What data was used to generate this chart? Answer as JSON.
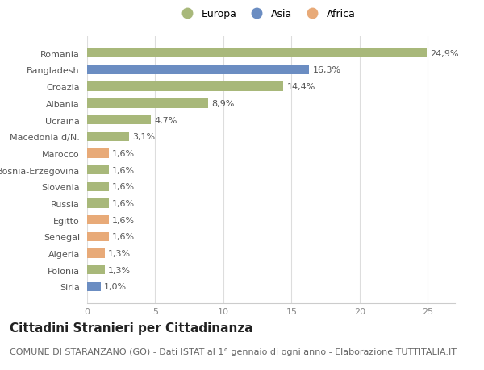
{
  "categories": [
    "Siria",
    "Polonia",
    "Algeria",
    "Senegal",
    "Egitto",
    "Russia",
    "Slovenia",
    "Bosnia-Erzegovina",
    "Marocco",
    "Macedonia d/N.",
    "Ucraina",
    "Albania",
    "Croazia",
    "Bangladesh",
    "Romania"
  ],
  "values": [
    1.0,
    1.3,
    1.3,
    1.6,
    1.6,
    1.6,
    1.6,
    1.6,
    1.6,
    3.1,
    4.7,
    8.9,
    14.4,
    16.3,
    24.9
  ],
  "labels": [
    "1,0%",
    "1,3%",
    "1,3%",
    "1,6%",
    "1,6%",
    "1,6%",
    "1,6%",
    "1,6%",
    "1,6%",
    "3,1%",
    "4,7%",
    "8,9%",
    "14,4%",
    "16,3%",
    "24,9%"
  ],
  "colors": [
    "#6b8dc2",
    "#a8b87a",
    "#e8aa78",
    "#e8aa78",
    "#e8aa78",
    "#a8b87a",
    "#a8b87a",
    "#a8b87a",
    "#e8aa78",
    "#a8b87a",
    "#a8b87a",
    "#a8b87a",
    "#a8b87a",
    "#6b8dc2",
    "#a8b87a"
  ],
  "legend_labels": [
    "Europa",
    "Asia",
    "Africa"
  ],
  "legend_colors": [
    "#a8b87a",
    "#6b8dc2",
    "#e8aa78"
  ],
  "title": "Cittadini Stranieri per Cittadinanza",
  "subtitle": "COMUNE DI STARANZANO (GO) - Dati ISTAT al 1° gennaio di ogni anno - Elaborazione TUTTITALIA.IT",
  "xlim": [
    0,
    27
  ],
  "xticks": [
    0,
    5,
    10,
    15,
    20,
    25
  ],
  "bg_color": "#ffffff",
  "bar_height": 0.55,
  "label_fontsize": 8,
  "title_fontsize": 11,
  "subtitle_fontsize": 8,
  "tick_fontsize": 8,
  "legend_fontsize": 9
}
